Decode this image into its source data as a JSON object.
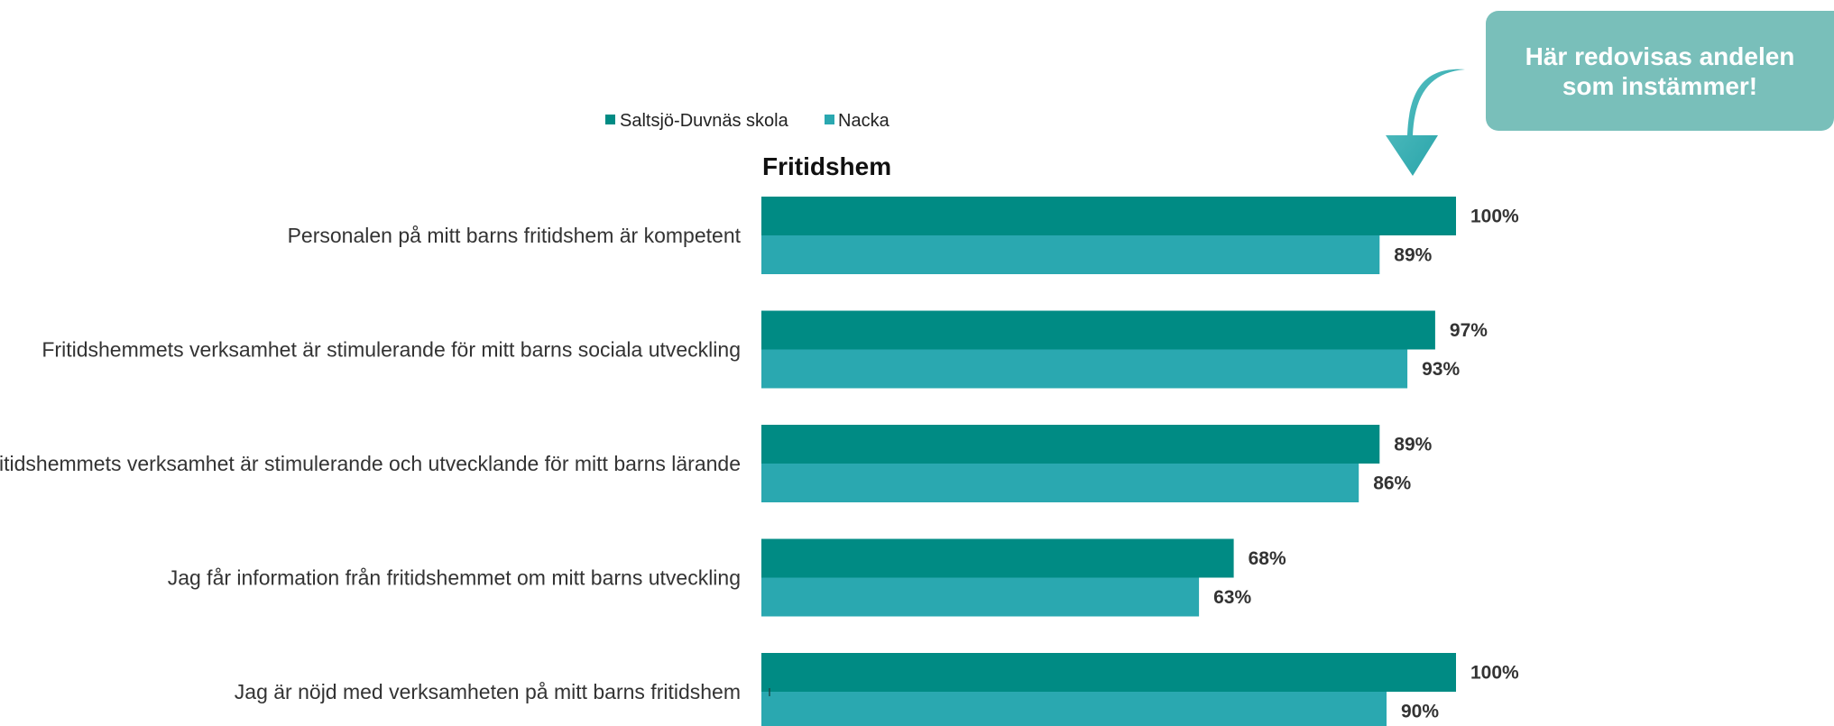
{
  "callout": {
    "text": "Här redovisas andelen som instämmer!"
  },
  "colors": {
    "school": "#008b84",
    "municipality": "#2aa8b0",
    "callout": "#79bfba",
    "arrow": "#2fa9ae"
  },
  "chart_data": {
    "type": "bar",
    "orientation": "horizontal",
    "title": "Fritidshem",
    "legend_position": "top",
    "categories": [
      "Personalen på mitt barns fritidshem är kompetent",
      "Fritidshemmets verksamhet är stimulerande för mitt barns sociala utveckling",
      "Fritidshemmets verksamhet är stimulerande och utvecklande för mitt barns lärande",
      "Jag får information från fritidshemmet om mitt barns utveckling",
      "Jag är nöjd med verksamheten på mitt barns fritidshem"
    ],
    "series": [
      {
        "name": "Saltsjö-Duvnäs skola",
        "values": [
          100,
          97,
          89,
          68,
          100
        ]
      },
      {
        "name": "Nacka",
        "values": [
          89,
          93,
          86,
          63,
          90
        ]
      }
    ],
    "value_labels": [
      [
        "100%",
        "97%",
        "89%",
        "68%",
        "100%"
      ],
      [
        "89%",
        "93%",
        "86%",
        "63%",
        "90%"
      ]
    ],
    "xlim": [
      0,
      100
    ],
    "grid": false
  }
}
